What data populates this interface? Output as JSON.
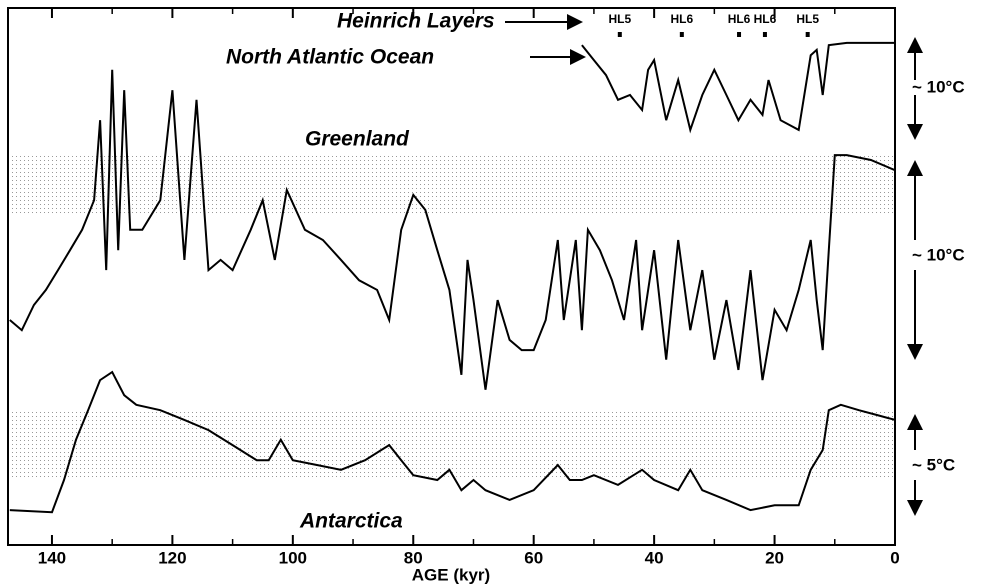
{
  "chart_data": {
    "type": "line",
    "xlabel": "AGE (kyr)",
    "xlim": [
      147.3,
      0
    ],
    "xticks": [
      0,
      20,
      40,
      60,
      80,
      100,
      120,
      140
    ],
    "xticks_minor": [
      10,
      30,
      50,
      70,
      90,
      110,
      130
    ],
    "ylim": [
      0,
      100
    ],
    "color": "#000000",
    "annotations": {
      "heinrich": "Heinrich Layers",
      "north_atlantic": "North Atlantic Ocean",
      "greenland": "Greenland",
      "antarctica": "Antarctica",
      "scale_na": "~ 10°C",
      "scale_gr": "~ 10°C",
      "scale_an": "~ 5°C"
    },
    "heinrich_layers": [
      {
        "label": "HL5",
        "x": 45.7
      },
      {
        "label": "HL6",
        "x": 35.4
      },
      {
        "label": "HL6",
        "x": 25.9
      },
      {
        "label": "HL6",
        "x": 21.6
      },
      {
        "label": "HL5",
        "x": 14.5
      }
    ],
    "series": [
      {
        "name": "North Atlantic Ocean",
        "x": [
          52,
          50,
          48,
          46,
          44,
          42,
          41,
          40,
          38,
          36,
          34,
          32,
          30,
          28,
          26,
          24,
          22,
          21,
          19,
          16,
          14,
          13,
          12,
          11,
          8,
          0
        ],
        "values": [
          93.1,
          90.3,
          87.5,
          82.9,
          83.8,
          81.0,
          88.5,
          90.3,
          79.1,
          86.6,
          77.3,
          83.8,
          88.5,
          83.8,
          79.1,
          82.9,
          80.1,
          86.6,
          79.1,
          77.3,
          91.2,
          92.2,
          83.8,
          93.1,
          93.5,
          93.5
        ]
      },
      {
        "name": "Greenland",
        "x": [
          147,
          145,
          143,
          141,
          139,
          137,
          135,
          133,
          132,
          131,
          130,
          129,
          128,
          127,
          125,
          122,
          120,
          118,
          116,
          114,
          112,
          110,
          107,
          105,
          103,
          101,
          98,
          95,
          92,
          89,
          86,
          84,
          82,
          80,
          78,
          76,
          74,
          72,
          71,
          70,
          68,
          66,
          64,
          62,
          60,
          58,
          56,
          55,
          53,
          52,
          51,
          49,
          47,
          45,
          43,
          42,
          40,
          38,
          36,
          34,
          32,
          30,
          28,
          26,
          24,
          22,
          20,
          18,
          16,
          14,
          13,
          12,
          11,
          10,
          8,
          4,
          0
        ],
        "values": [
          41.9,
          40.0,
          44.7,
          47.5,
          51.2,
          54.9,
          58.7,
          64.2,
          79.1,
          51.2,
          88.5,
          54.9,
          84.7,
          58.7,
          58.7,
          64.2,
          84.7,
          53.1,
          82.9,
          51.2,
          53.1,
          51.2,
          58.7,
          64.2,
          53.1,
          66.1,
          58.7,
          56.8,
          53.1,
          49.3,
          47.5,
          41.9,
          58.7,
          65.2,
          62.4,
          54.9,
          47.5,
          31.7,
          53.1,
          45.6,
          28.9,
          45.6,
          38.2,
          36.3,
          36.3,
          41.9,
          56.8,
          41.9,
          56.8,
          40.0,
          58.7,
          54.9,
          49.3,
          41.9,
          56.8,
          40.0,
          54.9,
          34.5,
          56.8,
          40.0,
          51.2,
          34.5,
          45.6,
          32.6,
          51.2,
          30.7,
          43.8,
          40.0,
          47.5,
          56.8,
          45.6,
          36.3,
          54.9,
          72.6,
          72.6,
          71.7,
          69.8
        ]
      },
      {
        "name": "Antarctica",
        "x": [
          147,
          140,
          138,
          136,
          134,
          132,
          130,
          128,
          126,
          122,
          118,
          114,
          110,
          106,
          104,
          102,
          100,
          96,
          92,
          88,
          84,
          82,
          80,
          76,
          74,
          72,
          70,
          68,
          64,
          60,
          56,
          54,
          52,
          50,
          46,
          42,
          40,
          36,
          34,
          32,
          28,
          24,
          20,
          16,
          14,
          12,
          11,
          9,
          6,
          3,
          0
        ],
        "values": [
          6.5,
          6.1,
          12.1,
          19.6,
          25.1,
          30.7,
          32.2,
          27.9,
          26.1,
          25.1,
          23.3,
          21.4,
          18.6,
          15.8,
          15.8,
          19.6,
          15.8,
          14.9,
          14.0,
          15.8,
          18.6,
          15.8,
          13.0,
          12.1,
          14.0,
          10.2,
          12.1,
          10.2,
          8.4,
          10.2,
          14.9,
          12.1,
          12.1,
          13.0,
          11.2,
          14.0,
          12.1,
          10.2,
          14.0,
          10.2,
          8.4,
          6.5,
          7.4,
          7.4,
          14.0,
          17.7,
          25.1,
          26.1,
          25.1,
          24.2,
          23.3
        ]
      }
    ]
  }
}
